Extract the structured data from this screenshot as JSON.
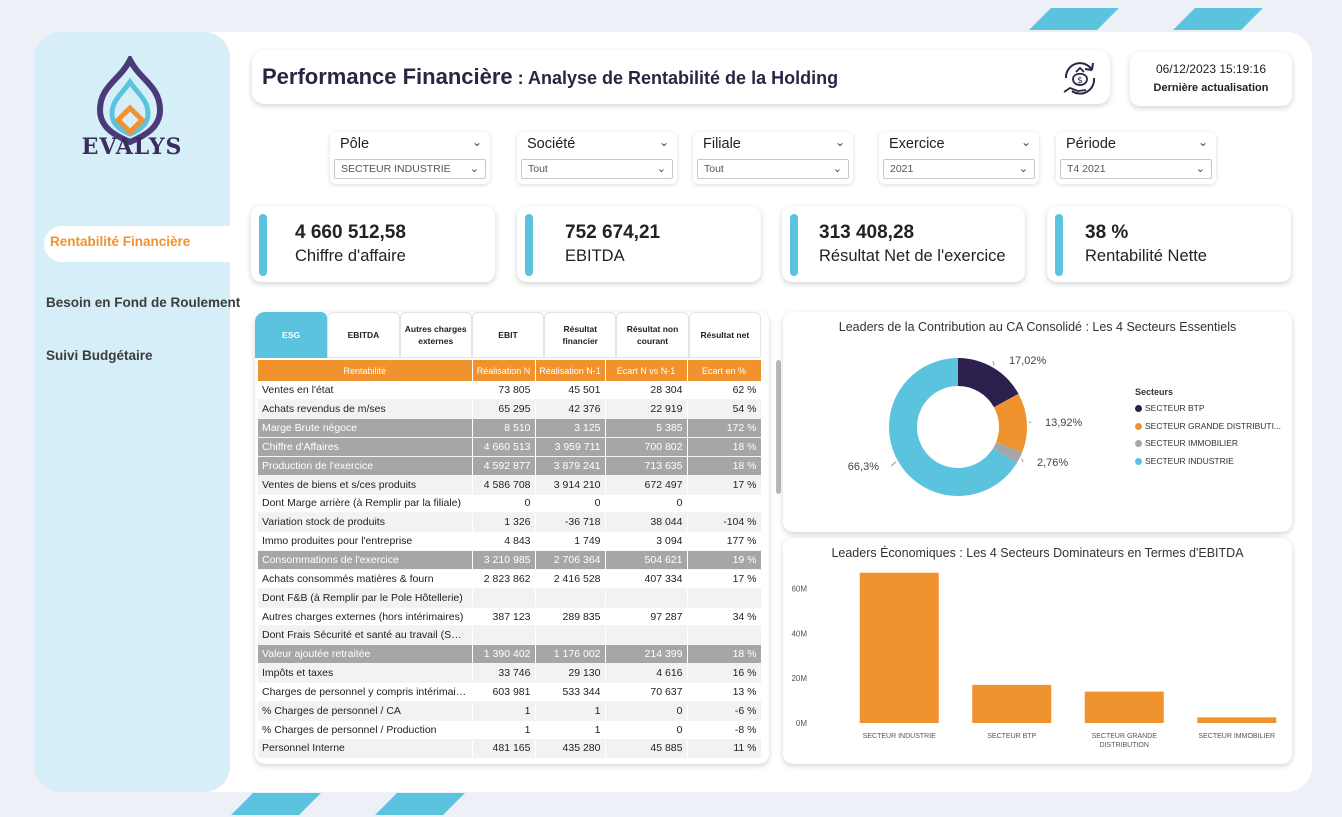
{
  "brand": {
    "name": "EVALYS",
    "colors": {
      "purple": "#2d1f4e",
      "blue": "#5bc3de",
      "orange": "#f0922e",
      "grey": "#a6a6a6"
    }
  },
  "nav": {
    "items": [
      {
        "label": "Rentabilité Financière",
        "active": true
      },
      {
        "label": "Besoin en Fond de Roulement",
        "active": false
      },
      {
        "label": "Suivi Budgétaire",
        "active": false
      }
    ]
  },
  "header": {
    "title": "Performance Financière",
    "subtitle": " : Analyse de Rentabilité de la Holding",
    "icon": "money-cycle-icon"
  },
  "refresh": {
    "datetime": "06/12/2023 15:19:16",
    "label": "Dernière actualisation"
  },
  "filters": [
    {
      "label": "Pôle",
      "value": "SECTEUR INDUSTRIE"
    },
    {
      "label": "Société",
      "value": "Tout"
    },
    {
      "label": "Filiale",
      "value": "Tout"
    },
    {
      "label": "Exercice",
      "value": "2021"
    },
    {
      "label": "Période",
      "value": "T4 2021"
    }
  ],
  "kpis": [
    {
      "value": "4 660 512,58",
      "label": "Chiffre d'affaire"
    },
    {
      "value": "752 674,21",
      "label": "EBITDA"
    },
    {
      "value": "313 408,28",
      "label": "Résultat Net de l'exercice"
    },
    {
      "value": "38 %",
      "label": "Rentabilité Nette"
    }
  ],
  "table": {
    "tabs": [
      "ESG",
      "EBITDA",
      "Autres charges externes",
      "EBIT",
      "Résultat financier",
      "Résultat non courant",
      "Résultat net"
    ],
    "active_tab": 0,
    "columns": [
      "Rentabilité",
      "Réalisation N",
      "Réalisation N-1",
      "Ecart N vs N-1",
      "Ecart en %"
    ],
    "rows": [
      {
        "cells": [
          "Ventes en l'état",
          "73 805",
          "45 501",
          "28 304",
          "62 %"
        ],
        "hl": false
      },
      {
        "cells": [
          "Achats revendus de m/ses",
          "65 295",
          "42 376",
          "22 919",
          "54 %"
        ],
        "hl": false
      },
      {
        "cells": [
          "Marge Brute négoce",
          "8 510",
          "3 125",
          "5 385",
          "172 %"
        ],
        "hl": true
      },
      {
        "cells": [
          "Chiffre d'Affaires",
          "4 660 513",
          "3 959 711",
          "700 802",
          "18 %"
        ],
        "hl": true
      },
      {
        "cells": [
          "Production de l'exercice",
          "4 592 877",
          "3 879 241",
          "713 635",
          "18 %"
        ],
        "hl": true
      },
      {
        "cells": [
          "Ventes de biens et s/ces produits",
          "4 586 708",
          "3 914 210",
          "672 497",
          "17 %"
        ],
        "hl": false
      },
      {
        "cells": [
          "Dont Marge arrière (à Remplir par la filiale)",
          "0",
          "0",
          "0",
          ""
        ],
        "hl": false
      },
      {
        "cells": [
          "Variation stock de produits",
          "1 326",
          "-36 718",
          "38 044",
          "-104 %"
        ],
        "hl": false
      },
      {
        "cells": [
          "Immo produites pour l'entreprise",
          "4 843",
          "1 749",
          "3 094",
          "177 %"
        ],
        "hl": false
      },
      {
        "cells": [
          "Consommations de l'exercice",
          "3 210 985",
          "2 706 364",
          "504 621",
          "19 %"
        ],
        "hl": true
      },
      {
        "cells": [
          "Achats consommés matières & fourn",
          "2 823 862",
          "2 416 528",
          "407 334",
          "17 %"
        ],
        "hl": false
      },
      {
        "cells": [
          "Dont F&B (à Remplir par le Pole Hôtellerie)",
          "",
          "",
          "",
          ""
        ],
        "hl": false
      },
      {
        "cells": [
          "Autres charges externes (hors intérimaires)",
          "387 123",
          "289 835",
          "97 287",
          "34 %"
        ],
        "hl": false
      },
      {
        "cells": [
          "Dont Frais Sécurité et santé au travail (SST)",
          "",
          "",
          "",
          ""
        ],
        "hl": false
      },
      {
        "cells": [
          "Valeur ajoutée retraitée",
          "1 390 402",
          "1 176 002",
          "214 399",
          "18 %"
        ],
        "hl": true
      },
      {
        "cells": [
          "Impôts et taxes",
          "33 746",
          "29 130",
          "4 616",
          "16 %"
        ],
        "hl": false
      },
      {
        "cells": [
          "Charges de personnel y compris intérimaires",
          "603 981",
          "533 344",
          "70 637",
          "13 %"
        ],
        "hl": false
      },
      {
        "cells": [
          "% Charges de personnel / CA",
          "1",
          "1",
          "0",
          "-6 %"
        ],
        "hl": false
      },
      {
        "cells": [
          "% Charges de personnel / Production",
          "1",
          "1",
          "0",
          "-8 %"
        ],
        "hl": false
      },
      {
        "cells": [
          "Personnel Interne",
          "481 165",
          "435 280",
          "45 885",
          "11 %"
        ],
        "hl": false
      }
    ]
  },
  "donut": {
    "title": "Leaders de la Contribution au CA Consolidé : Les 4 Secteurs Essentiels",
    "legend_title": "Secteurs",
    "labels": [
      "17,02%",
      "13,92%",
      "2,76%",
      "66,3%"
    ]
  },
  "bars": {
    "title": "Leaders Économiques : Les 4 Secteurs Dominateurs en Termes d'EBITDA",
    "y_ticks": [
      "0M",
      "20M",
      "40M",
      "60M"
    ],
    "x_lines": [
      [
        "SECTEUR INDUSTRIE"
      ],
      [
        "SECTEUR BTP"
      ],
      [
        "SECTEUR GRANDE",
        "DISTRIBUTION"
      ],
      [
        "SECTEUR IMMOBILIER"
      ]
    ]
  },
  "chart_data": [
    {
      "type": "pie",
      "title": "Leaders de la Contribution au CA Consolidé : Les 4 Secteurs Essentiels",
      "legend_title": "Secteurs",
      "legend_position": "right",
      "series": [
        {
          "name": "SECTEUR BTP",
          "value": 17.02,
          "color": "#2d1f4e"
        },
        {
          "name": "SECTEUR GRANDE DISTRIBUTI...",
          "value": 13.92,
          "color": "#f0922e"
        },
        {
          "name": "SECTEUR IMMOBILIER",
          "value": 2.76,
          "color": "#a6a6a6"
        },
        {
          "name": "SECTEUR INDUSTRIE",
          "value": 66.3,
          "color": "#5bc3de"
        }
      ]
    },
    {
      "type": "bar",
      "title": "Leaders Économiques : Les 4 Secteurs Dominateurs en Termes d'EBITDA",
      "categories": [
        "SECTEUR INDUSTRIE",
        "SECTEUR BTP",
        "SECTEUR GRANDE DISTRIBUTION",
        "SECTEUR IMMOBILIER"
      ],
      "values": [
        67,
        17,
        14,
        2.5
      ],
      "unit": "M",
      "ylim": [
        0,
        70
      ],
      "y_ticks": [
        0,
        20,
        40,
        60
      ],
      "color": "#f0922e",
      "grid": false
    }
  ]
}
